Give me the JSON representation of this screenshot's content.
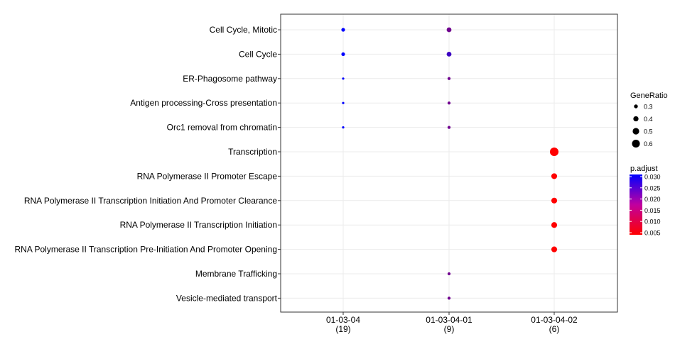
{
  "chart_data": {
    "type": "scatter",
    "title": "",
    "xlabel": "",
    "ylabel": "",
    "categories_x": [
      {
        "label": "01-03-04",
        "count": "(19)"
      },
      {
        "label": "01-03-04-01",
        "count": "(9)"
      },
      {
        "label": "01-03-04-02",
        "count": "(6)"
      }
    ],
    "categories_y": [
      "Cell Cycle, Mitotic",
      "Cell Cycle",
      "ER-Phagosome pathway",
      "Antigen processing-Cross presentation",
      "Orc1 removal from chromatin",
      "Transcription",
      "RNA Polymerase II Promoter Escape",
      "RNA Polymerase II Transcription Initiation And Promoter Clearance",
      "RNA Polymerase II Transcription Initiation",
      "RNA Polymerase II Transcription Pre-Initiation And Promoter Opening",
      "Membrane Trafficking",
      "Vesicle-mediated transport"
    ],
    "points": [
      {
        "x": "01-03-04",
        "y": "Cell Cycle, Mitotic",
        "gene_ratio": 0.37,
        "p_adjust": 0.03
      },
      {
        "x": "01-03-04",
        "y": "Cell Cycle",
        "gene_ratio": 0.37,
        "p_adjust": 0.03
      },
      {
        "x": "01-03-04",
        "y": "ER-Phagosome pathway",
        "gene_ratio": 0.16,
        "p_adjust": 0.03
      },
      {
        "x": "01-03-04",
        "y": "Antigen processing-Cross presentation",
        "gene_ratio": 0.16,
        "p_adjust": 0.03
      },
      {
        "x": "01-03-04",
        "y": "Orc1 removal from chromatin",
        "gene_ratio": 0.16,
        "p_adjust": 0.03
      },
      {
        "x": "01-03-04-01",
        "y": "Cell Cycle, Mitotic",
        "gene_ratio": 0.44,
        "p_adjust": 0.019
      },
      {
        "x": "01-03-04-01",
        "y": "Cell Cycle",
        "gene_ratio": 0.44,
        "p_adjust": 0.024
      },
      {
        "x": "01-03-04-01",
        "y": "ER-Phagosome pathway",
        "gene_ratio": 0.33,
        "p_adjust": 0.019
      },
      {
        "x": "01-03-04-01",
        "y": "Antigen processing-Cross presentation",
        "gene_ratio": 0.33,
        "p_adjust": 0.019
      },
      {
        "x": "01-03-04-01",
        "y": "Orc1 removal from chromatin",
        "gene_ratio": 0.33,
        "p_adjust": 0.019
      },
      {
        "x": "01-03-04-01",
        "y": "Membrane Trafficking",
        "gene_ratio": 0.33,
        "p_adjust": 0.019
      },
      {
        "x": "01-03-04-01",
        "y": "Vesicle-mediated transport",
        "gene_ratio": 0.33,
        "p_adjust": 0.019
      },
      {
        "x": "01-03-04-02",
        "y": "Transcription",
        "gene_ratio": 0.67,
        "p_adjust": 0.005
      },
      {
        "x": "01-03-04-02",
        "y": "RNA Polymerase II Promoter Escape",
        "gene_ratio": 0.5,
        "p_adjust": 0.005
      },
      {
        "x": "01-03-04-02",
        "y": "RNA Polymerase II Transcription Initiation And Promoter Clearance",
        "gene_ratio": 0.5,
        "p_adjust": 0.005
      },
      {
        "x": "01-03-04-02",
        "y": "RNA Polymerase II Transcription Initiation",
        "gene_ratio": 0.5,
        "p_adjust": 0.005
      },
      {
        "x": "01-03-04-02",
        "y": "RNA Polymerase II Transcription Pre-Initiation And Promoter Opening",
        "gene_ratio": 0.5,
        "p_adjust": 0.005
      }
    ],
    "size_legend": {
      "title": "GeneRatio",
      "values": [
        0.3,
        0.4,
        0.5,
        0.6
      ],
      "labels": [
        "0.3",
        "0.4",
        "0.5",
        "0.6"
      ]
    },
    "color_legend": {
      "title": "p.adjust",
      "min": 0.005,
      "max": 0.03,
      "ticks": [
        0.03,
        0.025,
        0.02,
        0.015,
        0.01,
        0.005
      ],
      "tick_labels": [
        "0.030",
        "0.025",
        "0.020",
        "0.015",
        "0.010",
        "0.005"
      ],
      "low_color": "#ff0000",
      "high_color": "#0000ff"
    },
    "grid": true,
    "legend_position": "right"
  }
}
